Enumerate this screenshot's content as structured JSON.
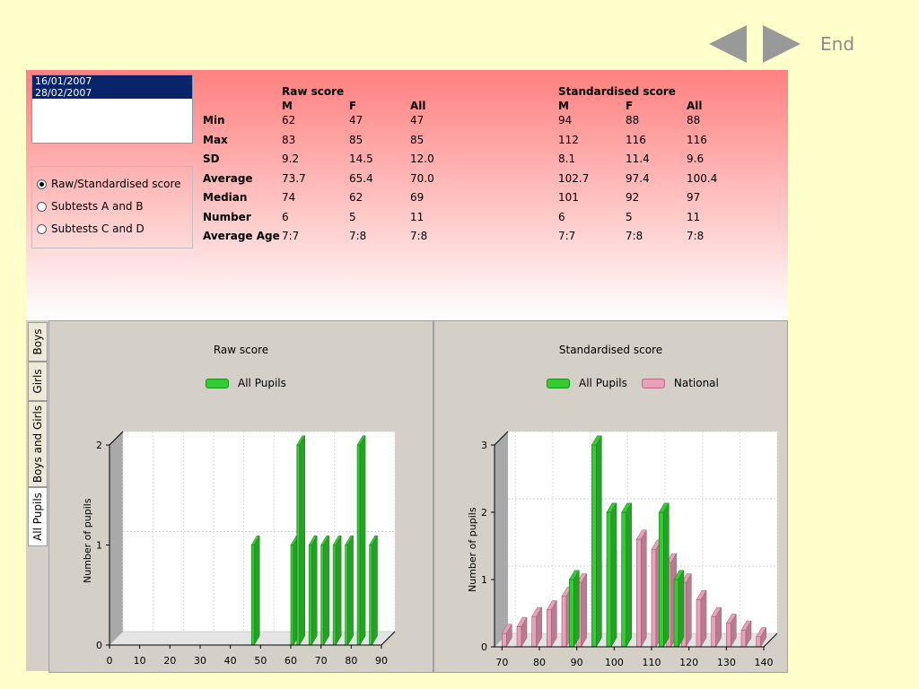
{
  "nav": {
    "end_label": "End"
  },
  "dates": [
    "16/01/2007",
    "28/02/2007"
  ],
  "options": [
    "Raw/Standardised score",
    "Subtests A and B",
    "Subtests C and D"
  ],
  "selected_option": 0,
  "stats": {
    "raw_header": "Raw score",
    "std_header": "Standardised score",
    "cols": [
      "M",
      "F",
      "All"
    ],
    "row_labels": [
      "Min",
      "Max",
      "SD",
      "Average",
      "Median",
      "Number",
      "Average Age"
    ],
    "raw": [
      [
        "62",
        "47",
        "47"
      ],
      [
        "83",
        "85",
        "85"
      ],
      [
        "9.2",
        "14.5",
        "12.0"
      ],
      [
        "73.7",
        "65.4",
        "70.0"
      ],
      [
        "74",
        "62",
        "69"
      ],
      [
        "6",
        "5",
        "11"
      ],
      [
        "7:7",
        "7:8",
        "7:8"
      ]
    ],
    "std": [
      [
        "94",
        "88",
        "88"
      ],
      [
        "112",
        "116",
        "116"
      ],
      [
        "8.1",
        "11.4",
        "9.6"
      ],
      [
        "102.7",
        "97.4",
        "100.4"
      ],
      [
        "101",
        "92",
        "97"
      ],
      [
        "6",
        "5",
        "11"
      ],
      [
        "7:7",
        "7:8",
        "7:8"
      ]
    ]
  },
  "tabs": [
    "Boys",
    "Girls",
    "Boys and Girls",
    "All Pupils"
  ],
  "active_tab": "All Pupils",
  "colors": {
    "green": "#33cc33",
    "pink": "#ec9fb8"
  },
  "chart_data": [
    {
      "type": "bar",
      "title": "Raw score",
      "ylabel": "Number of pupils",
      "xlim": [
        0,
        90
      ],
      "ylim": [
        0,
        2
      ],
      "xticks": [
        0,
        10,
        20,
        30,
        40,
        50,
        60,
        70,
        80,
        90
      ],
      "yticks": [
        0,
        1,
        2
      ],
      "series": [
        {
          "name": "All Pupils",
          "color": "#33cc33",
          "x": [
            47,
            60,
            62,
            66,
            70,
            74,
            78,
            82,
            86
          ],
          "values": [
            1,
            1,
            2,
            1,
            1,
            1,
            1,
            2,
            1
          ]
        }
      ]
    },
    {
      "type": "bar",
      "title": "Standardised score",
      "ylabel": "Number of pupils",
      "xlim": [
        68,
        140
      ],
      "ylim": [
        0,
        3
      ],
      "xticks": [
        70,
        80,
        90,
        100,
        110,
        120,
        130,
        140
      ],
      "yticks": [
        0,
        1,
        2,
        3
      ],
      "series": [
        {
          "name": "All Pupils",
          "color": "#33cc33",
          "x": [
            88,
            94,
            98,
            102,
            112,
            116
          ],
          "values": [
            1,
            3,
            2,
            2,
            2,
            1
          ]
        },
        {
          "name": "National",
          "color": "#ec9fb8",
          "x": [
            70,
            74,
            78,
            82,
            86,
            90,
            94,
            98,
            102,
            106,
            110,
            114,
            118,
            122,
            126,
            130,
            134,
            138
          ],
          "values": [
            0.2,
            0.3,
            0.45,
            0.55,
            0.75,
            0.95,
            1.15,
            1.3,
            1.45,
            1.6,
            1.45,
            1.25,
            0.95,
            0.7,
            0.45,
            0.35,
            0.25,
            0.15
          ]
        }
      ]
    }
  ]
}
